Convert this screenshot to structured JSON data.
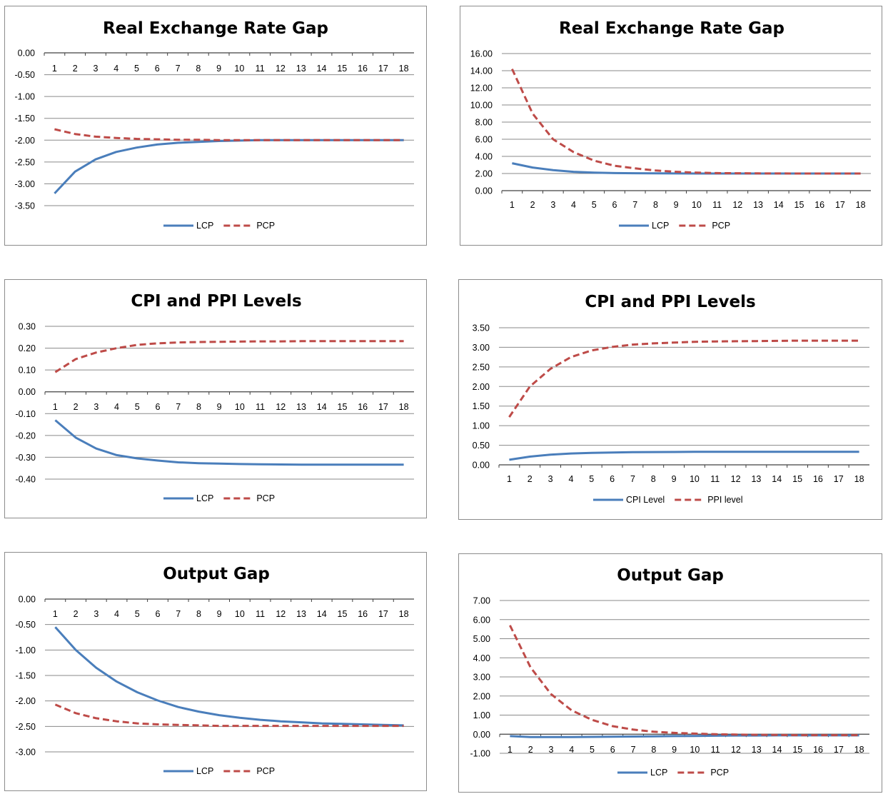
{
  "colors": {
    "series_solid": "#4a7ebb",
    "series_dashed": "#be4b48"
  },
  "chart_data": [
    {
      "type": "line",
      "title": "Real Exchange Rate Gap",
      "x": [
        1,
        2,
        3,
        4,
        5,
        6,
        7,
        8,
        9,
        10,
        11,
        12,
        13,
        14,
        15,
        16,
        17,
        18
      ],
      "ylim": [
        -3.5,
        0
      ],
      "yticks": [
        0,
        -0.5,
        -1,
        -1.5,
        -2,
        -2.5,
        -3,
        -3.5
      ],
      "x_axis_at": 0,
      "grid": true,
      "legend": "bottom",
      "series": [
        {
          "name": "LCP",
          "style": "solid",
          "values": [
            -3.22,
            -2.72,
            -2.44,
            -2.27,
            -2.17,
            -2.1,
            -2.06,
            -2.04,
            -2.02,
            -2.01,
            -2.0,
            -2.0,
            -2.0,
            -2.0,
            -2.0,
            -2.0,
            -2.0,
            -2.0
          ]
        },
        {
          "name": "PCP",
          "style": "dashed",
          "values": [
            -1.75,
            -1.86,
            -1.92,
            -1.95,
            -1.97,
            -1.98,
            -1.99,
            -1.99,
            -2.0,
            -2.0,
            -2.0,
            -2.0,
            -2.0,
            -2.0,
            -2.0,
            -2.0,
            -2.0,
            -2.0
          ]
        }
      ]
    },
    {
      "type": "line",
      "title": "Real Exchange Rate Gap",
      "x": [
        1,
        2,
        3,
        4,
        5,
        6,
        7,
        8,
        9,
        10,
        11,
        12,
        13,
        14,
        15,
        16,
        17,
        18
      ],
      "ylim": [
        0,
        16
      ],
      "yticks": [
        16,
        14,
        12,
        10,
        8,
        6,
        4,
        2,
        0
      ],
      "x_axis_at": 0,
      "grid": true,
      "legend": "bottom",
      "series": [
        {
          "name": "LCP",
          "style": "solid",
          "values": [
            3.2,
            2.7,
            2.4,
            2.2,
            2.1,
            2.05,
            2.03,
            2.02,
            2.01,
            2.0,
            2.0,
            2.0,
            2.0,
            2.0,
            2.0,
            2.0,
            2.0,
            2.0
          ]
        },
        {
          "name": "PCP",
          "style": "dashed",
          "values": [
            14.2,
            9.0,
            6.0,
            4.5,
            3.5,
            2.9,
            2.6,
            2.35,
            2.2,
            2.1,
            2.05,
            2.03,
            2.02,
            2.01,
            2.0,
            2.0,
            2.0,
            2.0
          ]
        }
      ]
    },
    {
      "type": "line",
      "title": "CPI and PPI Levels",
      "x": [
        1,
        2,
        3,
        4,
        5,
        6,
        7,
        8,
        9,
        10,
        11,
        12,
        13,
        14,
        15,
        16,
        17,
        18
      ],
      "ylim": [
        -0.4,
        0.3
      ],
      "yticks": [
        0.3,
        0.2,
        0.1,
        0,
        -0.1,
        -0.2,
        -0.3,
        -0.4
      ],
      "x_axis_at": 0,
      "grid": true,
      "legend": "bottom",
      "series": [
        {
          "name": "LCP",
          "style": "solid",
          "values": [
            -0.13,
            -0.21,
            -0.26,
            -0.29,
            -0.305,
            -0.315,
            -0.323,
            -0.327,
            -0.329,
            -0.331,
            -0.332,
            -0.333,
            -0.334,
            -0.334,
            -0.334,
            -0.334,
            -0.334,
            -0.334
          ]
        },
        {
          "name": "PCP",
          "style": "dashed",
          "values": [
            0.09,
            0.15,
            0.18,
            0.2,
            0.215,
            0.222,
            0.226,
            0.228,
            0.229,
            0.23,
            0.231,
            0.231,
            0.232,
            0.232,
            0.232,
            0.232,
            0.232,
            0.232
          ]
        }
      ]
    },
    {
      "type": "line",
      "title": "CPI and PPI Levels",
      "x": [
        1,
        2,
        3,
        4,
        5,
        6,
        7,
        8,
        9,
        10,
        11,
        12,
        13,
        14,
        15,
        16,
        17,
        18
      ],
      "ylim": [
        0,
        3.5
      ],
      "yticks": [
        3.5,
        3,
        2.5,
        2,
        1.5,
        1,
        0.5,
        0
      ],
      "x_axis_at": 0,
      "grid": true,
      "legend": "bottom",
      "series": [
        {
          "name": "CPI Level",
          "style": "solid",
          "values": [
            0.13,
            0.21,
            0.26,
            0.29,
            0.305,
            0.315,
            0.323,
            0.327,
            0.329,
            0.331,
            0.332,
            0.333,
            0.334,
            0.334,
            0.334,
            0.334,
            0.334,
            0.334
          ]
        },
        {
          "name": "PPI level",
          "style": "dashed",
          "values": [
            1.22,
            2.0,
            2.45,
            2.75,
            2.92,
            3.01,
            3.07,
            3.1,
            3.12,
            3.14,
            3.15,
            3.155,
            3.16,
            3.165,
            3.17,
            3.17,
            3.17,
            3.17
          ]
        }
      ]
    },
    {
      "type": "line",
      "title": "Output Gap",
      "x": [
        1,
        2,
        3,
        4,
        5,
        6,
        7,
        8,
        9,
        10,
        11,
        12,
        13,
        14,
        15,
        16,
        17,
        18
      ],
      "ylim": [
        -3,
        0
      ],
      "yticks": [
        0,
        -0.5,
        -1,
        -1.5,
        -2,
        -2.5,
        -3
      ],
      "x_axis_at": 0,
      "grid": true,
      "legend": "bottom",
      "series": [
        {
          "name": "LCP",
          "style": "solid",
          "values": [
            -0.55,
            -1.0,
            -1.35,
            -1.62,
            -1.83,
            -1.99,
            -2.12,
            -2.21,
            -2.28,
            -2.33,
            -2.37,
            -2.4,
            -2.42,
            -2.44,
            -2.45,
            -2.46,
            -2.47,
            -2.48
          ]
        },
        {
          "name": "PCP",
          "style": "dashed",
          "values": [
            -2.07,
            -2.24,
            -2.34,
            -2.4,
            -2.44,
            -2.46,
            -2.47,
            -2.48,
            -2.49,
            -2.49,
            -2.49,
            -2.49,
            -2.49,
            -2.49,
            -2.49,
            -2.49,
            -2.49,
            -2.49
          ]
        }
      ]
    },
    {
      "type": "line",
      "title": "Output Gap",
      "x": [
        1,
        2,
        3,
        4,
        5,
        6,
        7,
        8,
        9,
        10,
        11,
        12,
        13,
        14,
        15,
        16,
        17,
        18
      ],
      "ylim": [
        -1,
        7
      ],
      "yticks": [
        7,
        6,
        5,
        4,
        3,
        2,
        1,
        0,
        -1
      ],
      "x_axis_at": 0,
      "grid": true,
      "legend": "bottom",
      "series": [
        {
          "name": "LCP",
          "style": "solid",
          "values": [
            -0.1,
            -0.15,
            -0.15,
            -0.15,
            -0.14,
            -0.13,
            -0.12,
            -0.11,
            -0.1,
            -0.09,
            -0.08,
            -0.07,
            -0.07,
            -0.06,
            -0.06,
            -0.06,
            -0.06,
            -0.06
          ]
        },
        {
          "name": "PCP",
          "style": "dashed",
          "values": [
            5.7,
            3.5,
            2.1,
            1.25,
            0.75,
            0.42,
            0.24,
            0.13,
            0.07,
            0.03,
            0.0,
            -0.02,
            -0.03,
            -0.04,
            -0.05,
            -0.05,
            -0.05,
            -0.05
          ]
        }
      ]
    }
  ]
}
